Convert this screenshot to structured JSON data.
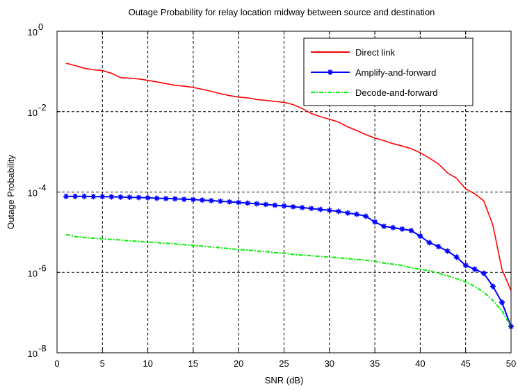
{
  "chart_data": {
    "type": "line",
    "title": "Outage Probability for relay location midway between source and destination",
    "xlabel": "SNR (dB)",
    "ylabel": "Outage Probability",
    "xlim": [
      0,
      50
    ],
    "ylim": [
      1e-08,
      1
    ],
    "yscale": "log",
    "grid": true,
    "legend_position": "top-right",
    "x_ticks": [
      0,
      5,
      10,
      15,
      20,
      25,
      30,
      35,
      40,
      45,
      50
    ],
    "x_tick_labels": [
      "0",
      "5",
      "10",
      "15",
      "20",
      "25",
      "30",
      "35",
      "40",
      "45",
      "50"
    ],
    "y_ticks": [
      1e-08,
      1e-06,
      0.0001,
      0.01,
      1
    ],
    "y_tick_labels": [
      {
        "base": "10",
        "exp": "-8"
      },
      {
        "base": "10",
        "exp": "-6"
      },
      {
        "base": "10",
        "exp": "-4"
      },
      {
        "base": "10",
        "exp": "-2"
      },
      {
        "base": "10",
        "exp": "0"
      }
    ],
    "series": [
      {
        "name": "Direct link",
        "color": "#ff0000",
        "style": "solid",
        "marker": "none",
        "x": [
          1,
          2,
          3,
          4,
          5,
          6,
          7,
          8,
          9,
          10,
          11,
          12,
          13,
          14,
          15,
          16,
          17,
          18,
          19,
          20,
          21,
          22,
          23,
          24,
          25,
          26,
          27,
          28,
          29,
          30,
          31,
          32,
          33,
          34,
          35,
          36,
          37,
          38,
          39,
          40,
          41,
          42,
          43,
          44,
          45,
          46,
          47,
          48,
          49,
          50
        ],
        "y": [
          0.16,
          0.14,
          0.12,
          0.11,
          0.105,
          0.09,
          0.07,
          0.068,
          0.065,
          0.06,
          0.055,
          0.05,
          0.045,
          0.043,
          0.04,
          0.036,
          0.032,
          0.028,
          0.025,
          0.023,
          0.022,
          0.02,
          0.019,
          0.018,
          0.017,
          0.015,
          0.012,
          0.009,
          0.0075,
          0.0065,
          0.0055,
          0.0042,
          0.0034,
          0.0027,
          0.0022,
          0.0019,
          0.0016,
          0.0014,
          0.0012,
          0.00095,
          0.0007,
          0.0005,
          0.0003,
          0.00022,
          0.00012,
          9e-05,
          6e-05,
          1.5e-05,
          1.2e-06,
          3.5e-07
        ]
      },
      {
        "name": "Amplify-and-forward",
        "color": "#0000ff",
        "style": "solid",
        "marker": "star",
        "x": [
          1,
          2,
          3,
          4,
          5,
          6,
          7,
          8,
          9,
          10,
          11,
          12,
          13,
          14,
          15,
          16,
          17,
          18,
          19,
          20,
          21,
          22,
          23,
          24,
          25,
          26,
          27,
          28,
          29,
          30,
          31,
          32,
          33,
          34,
          35,
          36,
          37,
          38,
          39,
          40,
          41,
          42,
          43,
          44,
          45,
          46,
          47,
          48,
          49,
          50
        ],
        "y": [
          7.8e-05,
          7.8e-05,
          7.8e-05,
          7.7e-05,
          7.7e-05,
          7.6e-05,
          7.5e-05,
          7.4e-05,
          7.3e-05,
          7.2e-05,
          7e-05,
          6.9e-05,
          6.8e-05,
          6.6e-05,
          6.5e-05,
          6.3e-05,
          6.1e-05,
          5.9e-05,
          5.7e-05,
          5.5e-05,
          5.3e-05,
          5.1e-05,
          4.9e-05,
          4.7e-05,
          4.5e-05,
          4.3e-05,
          4.1e-05,
          3.9e-05,
          3.7e-05,
          3.5e-05,
          3.3e-05,
          3e-05,
          2.8e-05,
          2.5e-05,
          1.8e-05,
          1.4e-05,
          1.3e-05,
          1.2e-05,
          1.1e-05,
          8e-06,
          5.5e-06,
          4.4e-06,
          3.4e-06,
          2.4e-06,
          1.5e-06,
          1.2e-06,
          9.5e-07,
          4.5e-07,
          1.8e-07,
          4.5e-08
        ]
      },
      {
        "name": "Decode-and-forward",
        "color": "#00ee00",
        "style": "dashdot",
        "marker": "none",
        "x": [
          1,
          2,
          3,
          4,
          5,
          6,
          7,
          8,
          9,
          10,
          11,
          12,
          13,
          14,
          15,
          16,
          17,
          18,
          19,
          20,
          21,
          22,
          23,
          24,
          25,
          26,
          27,
          28,
          29,
          30,
          31,
          32,
          33,
          34,
          35,
          36,
          37,
          38,
          39,
          40,
          41,
          42,
          43,
          44,
          45,
          46,
          47,
          48,
          49,
          50
        ],
        "y": [
          8.8e-06,
          7.8e-06,
          7.4e-06,
          7.1e-06,
          6.9e-06,
          6.6e-06,
          6.4e-06,
          6.1e-06,
          5.9e-06,
          5.7e-06,
          5.5e-06,
          5.3e-06,
          5.1e-06,
          4.9e-06,
          4.7e-06,
          4.5e-06,
          4.3e-06,
          4.1e-06,
          3.9e-06,
          3.7e-06,
          3.6e-06,
          3.4e-06,
          3.3e-06,
          3.1e-06,
          3e-06,
          2.8e-06,
          2.7e-06,
          2.6e-06,
          2.5e-06,
          2.4e-06,
          2.3e-06,
          2.2e-06,
          2.1e-06,
          2e-06,
          1.9e-06,
          1.7e-06,
          1.6e-06,
          1.5e-06,
          1.3e-06,
          1.2e-06,
          1.1e-06,
          9.5e-07,
          8.2e-07,
          7e-07,
          5.8e-07,
          4.5e-07,
          3.2e-07,
          2e-07,
          1.1e-07,
          4.5e-08
        ]
      }
    ]
  }
}
